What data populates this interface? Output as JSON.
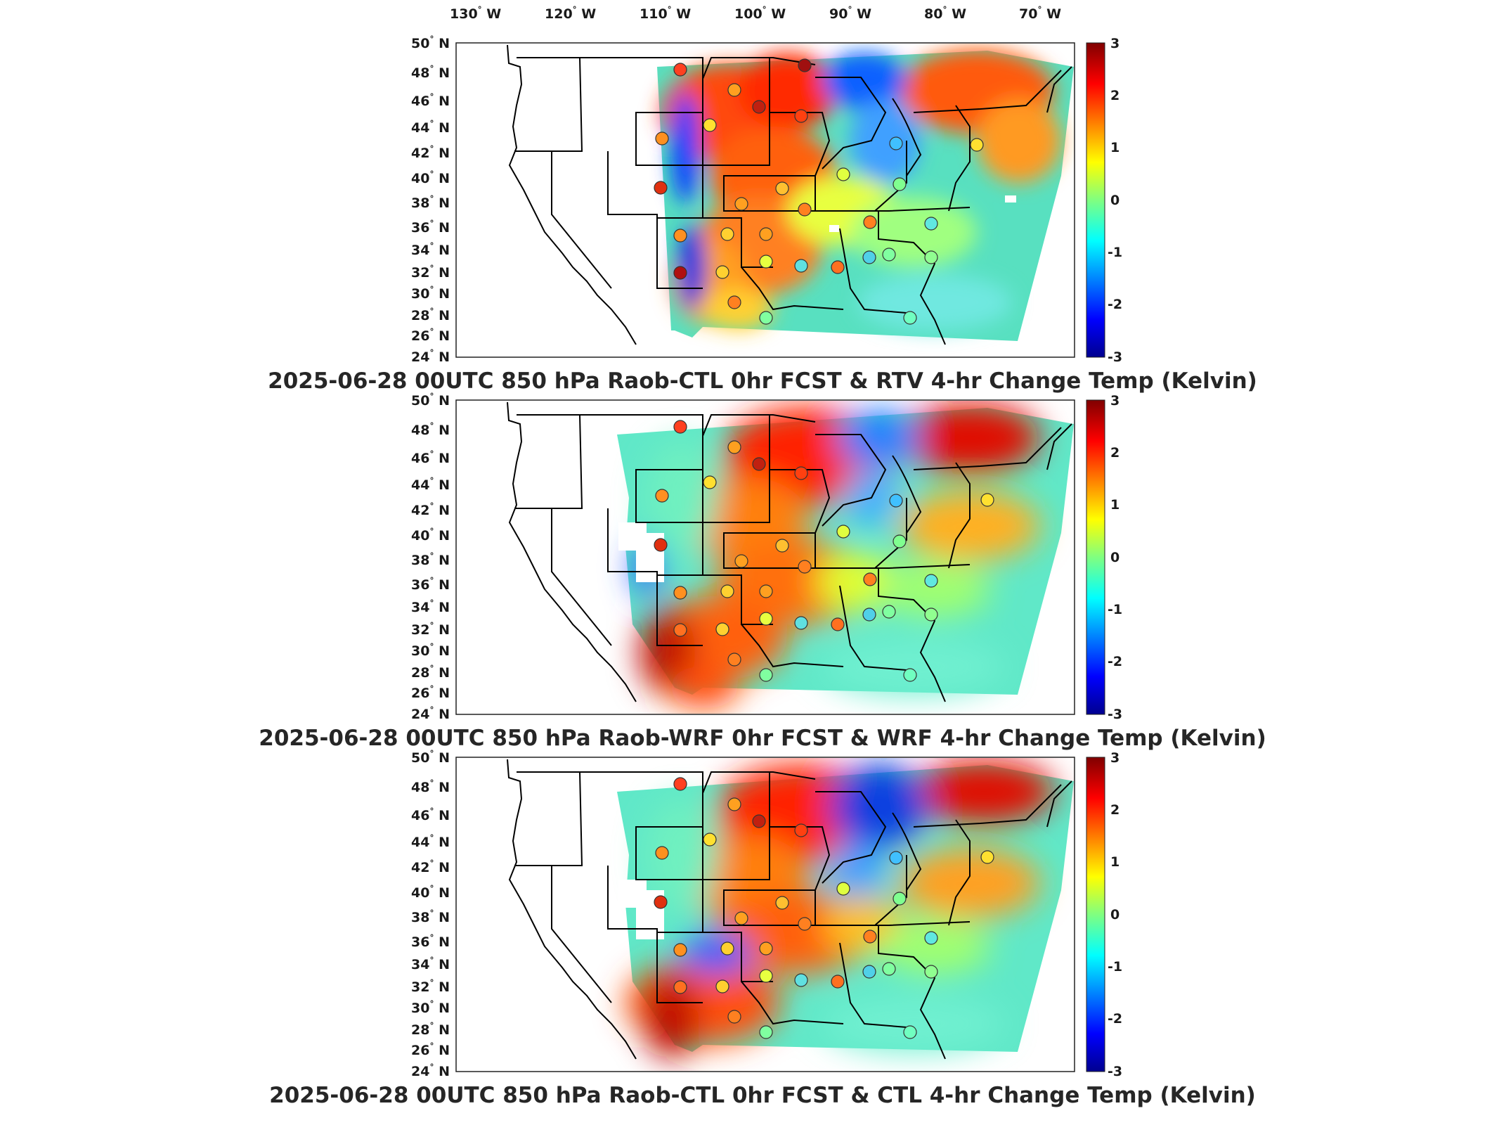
{
  "longitude_labels": [
    "130",
    "120",
    "110",
    "100",
    "90",
    "80",
    "70"
  ],
  "longitude_suffix": "W",
  "latitude_labels": [
    "50",
    "48",
    "46",
    "44",
    "42",
    "40",
    "38",
    "36",
    "34",
    "32",
    "30",
    "28",
    "26",
    "24"
  ],
  "latitude_suffix": "N",
  "degree_symbol": "°",
  "colorbar": {
    "ticks": [
      "3",
      "2",
      "1",
      "0",
      "-1",
      "-2",
      "-3"
    ],
    "range": [
      -3,
      3
    ],
    "colormap": "jet",
    "colors": [
      "#00008f",
      "#0000ff",
      "#00ffff",
      "#ffff00",
      "#ff0000",
      "#800000"
    ]
  },
  "panels": [
    {
      "title": "2025-06-28 00UTC 850 hPa Raob-CTL 0hr FCST & RTV 4-hr Change Temp (Kelvin)",
      "field": "RTV 4-hr Change Temp",
      "observations": "Raob-CTL 0hr FCST"
    },
    {
      "title": "2025-06-28 00UTC 850 hPa Raob-WRF 0hr FCST & WRF 4-hr Change Temp (Kelvin)",
      "field": "WRF 4-hr Change Temp",
      "observations": "Raob-WRF 0hr FCST"
    },
    {
      "title": "2025-06-28 00UTC 850 hPa Raob-CTL 0hr FCST & CTL 4-hr Change Temp (Kelvin)",
      "field": "CTL 4-hr Change Temp",
      "observations": "Raob-CTL 0hr FCST"
    }
  ]
}
